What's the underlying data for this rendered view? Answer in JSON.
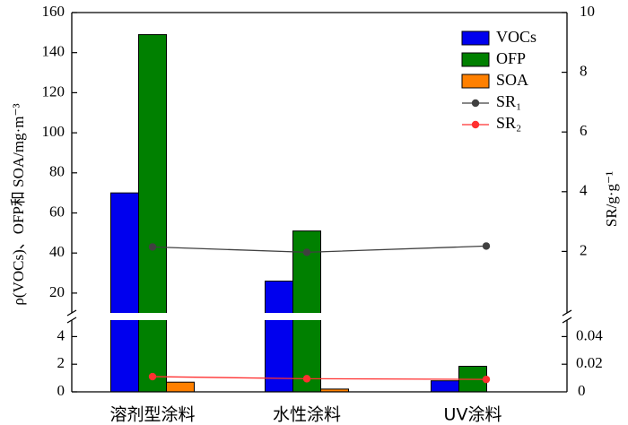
{
  "chart_data": {
    "type": "bar",
    "categories": [
      "溶剂型涂料",
      "水性涂料",
      "UV涂料"
    ],
    "series": [
      {
        "name": "VOCs",
        "values": [
          70,
          26,
          0.8
        ],
        "color": "#0000ee"
      },
      {
        "name": "OFP",
        "values": [
          149,
          51,
          1.85
        ],
        "color": "#008000"
      },
      {
        "name": "SOA",
        "values": [
          0.7,
          0.2,
          null
        ],
        "color": "#ff8000"
      }
    ],
    "line_series": [
      {
        "name": "SR₁",
        "axis": "right",
        "values": [
          2.15,
          1.97,
          2.18
        ],
        "color": "#404040"
      },
      {
        "name": "SR₂",
        "axis": "right",
        "values": [
          0.011,
          0.0095,
          0.009
        ],
        "color": "#ff3030"
      }
    ],
    "ylabel_left": "ρ(VOCs)、OFP和 SOA/mg·m⁻³",
    "ylabel_right": "SR/g·g⁻¹",
    "left_axis_upper": {
      "range": [
        11,
        160
      ],
      "ticks": [
        20,
        40,
        60,
        80,
        100,
        120,
        140,
        160
      ]
    },
    "left_axis_lower": {
      "range": [
        0,
        5
      ],
      "ticks": [
        0,
        2,
        4
      ]
    },
    "right_axis_upper": {
      "range": [
        0,
        10
      ],
      "ticks": [
        2,
        4,
        6,
        8,
        10
      ]
    },
    "right_axis_lower": {
      "range": [
        0,
        0.05
      ],
      "ticks": [
        0.02,
        0.04
      ]
    },
    "axis_break": true,
    "grid": false,
    "legend_position": "top-right"
  }
}
